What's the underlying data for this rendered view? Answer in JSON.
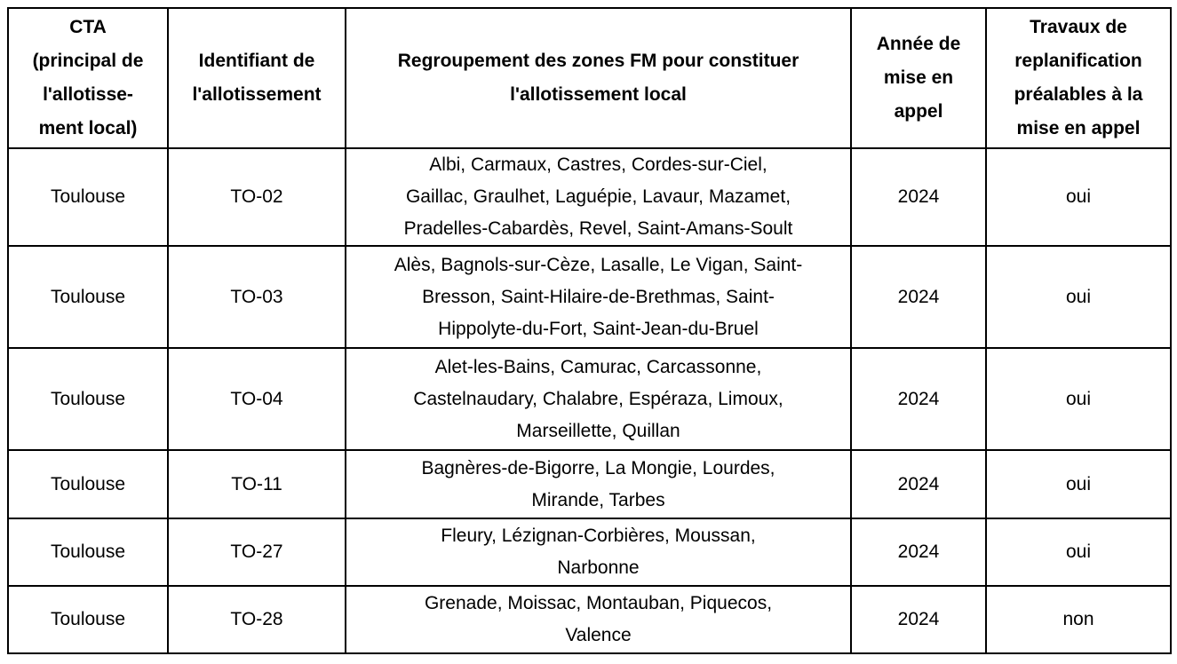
{
  "colors": {
    "border": "#000000",
    "background": "#ffffff",
    "text": "#000000"
  },
  "table": {
    "columns": [
      {
        "label": "CTA\n(principal de\nl'allotisse-\nment local)"
      },
      {
        "label": "Identifiant de\nl'allotissement"
      },
      {
        "label": "Regroupement des zones FM pour constituer\nl'allotissement local"
      },
      {
        "label": "Année de\nmise en\nappel"
      },
      {
        "label": "Travaux de\nreplanification\npréalables à la\nmise en appel"
      }
    ],
    "rows": [
      {
        "cta": "Toulouse",
        "identifiant": "TO-02",
        "zones": "Albi, Carmaux, Castres, Cordes-sur-Ciel,\nGaillac, Graulhet, Laguépie, Lavaur, Mazamet,\nPradelles-Cabardès, Revel, Saint-Amans-Soult",
        "annee": "2024",
        "travaux": "oui"
      },
      {
        "cta": "Toulouse",
        "identifiant": "TO-03",
        "zones": "Alès, Bagnols-sur-Cèze, Lasalle, Le Vigan, Saint-\nBresson, Saint-Hilaire-de-Brethmas, Saint-\nHippolyte-du-Fort, Saint-Jean-du-Bruel",
        "annee": "2024",
        "travaux": "oui"
      },
      {
        "cta": "Toulouse",
        "identifiant": "TO-04",
        "zones": "Alet-les-Bains, Camurac, Carcassonne,\nCastelnaudary, Chalabre, Espéraza, Limoux,\nMarseillette, Quillan",
        "annee": "2024",
        "travaux": "oui"
      },
      {
        "cta": "Toulouse",
        "identifiant": "TO-11",
        "zones": "Bagnères-de-Bigorre, La Mongie, Lourdes,\nMirande, Tarbes",
        "annee": "2024",
        "travaux": "oui"
      },
      {
        "cta": "Toulouse",
        "identifiant": "TO-27",
        "zones": "Fleury, Lézignan-Corbières, Moussan,\nNarbonne",
        "annee": "2024",
        "travaux": "oui"
      },
      {
        "cta": "Toulouse",
        "identifiant": "TO-28",
        "zones": "Grenade, Moissac, Montauban, Piquecos,\nValence",
        "annee": "2024",
        "travaux": "non"
      }
    ]
  }
}
